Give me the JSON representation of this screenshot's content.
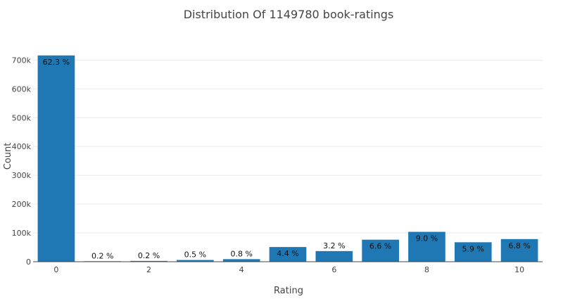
{
  "chart_data": {
    "type": "bar",
    "title": "Distribution Of 1149780 book-ratings",
    "xlabel": "Rating",
    "ylabel": "Count",
    "ylim": [
      0,
      740000
    ],
    "grid": true,
    "bar_color": "#1f77b4",
    "x_ticks": [
      0,
      2,
      4,
      6,
      8,
      10
    ],
    "y_ticks": [
      {
        "value": 0,
        "label": "0"
      },
      {
        "value": 100000,
        "label": "100k"
      },
      {
        "value": 200000,
        "label": "200k"
      },
      {
        "value": 300000,
        "label": "300k"
      },
      {
        "value": 400000,
        "label": "400k"
      },
      {
        "value": 500000,
        "label": "500k"
      },
      {
        "value": 600000,
        "label": "600k"
      },
      {
        "value": 700000,
        "label": "700k"
      }
    ],
    "x": [
      0,
      1,
      2,
      3,
      4,
      5,
      6,
      7,
      8,
      9,
      10
    ],
    "values": [
      716109,
      1770,
      2759,
      5996,
      8904,
      50974,
      36924,
      76457,
      103736,
      67541,
      78610
    ],
    "labels": [
      "62.3 %",
      "0.2 %",
      "0.2 %",
      "0.5 %",
      "0.8 %",
      "4.4 %",
      "3.2 %",
      "6.6 %",
      "9.0 %",
      "5.9 %",
      "6.8 %"
    ]
  }
}
